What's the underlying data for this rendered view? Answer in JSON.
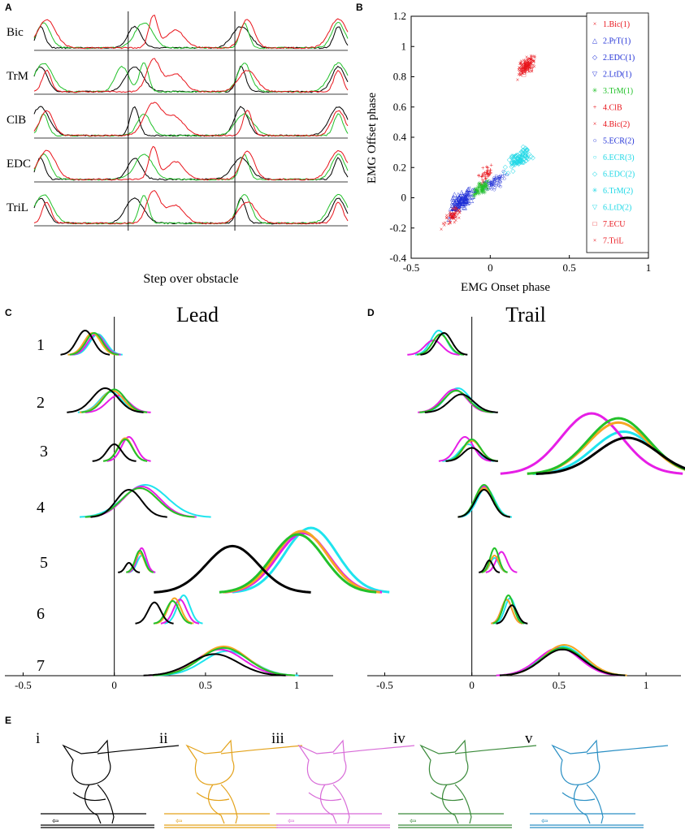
{
  "panel_labels": [
    "A",
    "B",
    "C",
    "D",
    "E"
  ],
  "chart_data": [
    {
      "id": "A",
      "type": "line",
      "title": "",
      "xlabel": "Step over obstacle",
      "rows": [
        "Bic",
        "TrM",
        "ClB",
        "EDC",
        "TriL"
      ],
      "series_colors": {
        "black": "#000000",
        "red": "#e8141b",
        "green": "#22c12a"
      },
      "vertical_markers": [
        0.3,
        0.64
      ],
      "grid": false
    },
    {
      "id": "B",
      "type": "scatter",
      "xlabel": "EMG Onset phase",
      "ylabel": "EMG Offset phase",
      "xlim": [
        -0.5,
        1
      ],
      "ylim": [
        -0.4,
        1.2
      ],
      "xticks": [
        "-0.5",
        "0",
        "0.5",
        "1"
      ],
      "yticks": [
        "-0.4",
        "-0.2",
        "0",
        "0.2",
        "0.4",
        "0.6",
        "0.8",
        "1",
        "1.2"
      ],
      "legend": [
        {
          "label": "1.Bic(1)",
          "color": "#e8141b",
          "marker": "×"
        },
        {
          "label": "2.PrT(1)",
          "color": "#1f2fd6",
          "marker": "△"
        },
        {
          "label": "2.EDC(1)",
          "color": "#1f2fd6",
          "marker": "◇"
        },
        {
          "label": "2.LtD(1)",
          "color": "#1f2fd6",
          "marker": "▽"
        },
        {
          "label": "3.TrM(1)",
          "color": "#22c12a",
          "marker": "✳"
        },
        {
          "label": "4.ClB",
          "color": "#e8141b",
          "marker": "+"
        },
        {
          "label": "4.Bic(2)",
          "color": "#e8141b",
          "marker": "×"
        },
        {
          "label": "5.ECR(2)",
          "color": "#1f2fd6",
          "marker": "○"
        },
        {
          "label": "6.ECR(3)",
          "color": "#1fd8e6",
          "marker": "○"
        },
        {
          "label": "6.EDC(2)",
          "color": "#1fd8e6",
          "marker": "◇"
        },
        {
          "label": "6.TrM(2)",
          "color": "#1fd8e6",
          "marker": "✳"
        },
        {
          "label": "6.LtD(2)",
          "color": "#1fd8e6",
          "marker": "▽"
        },
        {
          "label": "7.ECU",
          "color": "#e8141b",
          "marker": "□"
        },
        {
          "label": "7.TriL",
          "color": "#e8141b",
          "marker": "×"
        }
      ],
      "clusters": [
        {
          "color": "#e8141b",
          "marker": "×",
          "center": [
            0.23,
            0.88
          ],
          "spread": [
            0.05,
            0.05
          ],
          "n": 110
        },
        {
          "color": "#e8141b",
          "marker": "□",
          "center": [
            0.23,
            0.86
          ],
          "spread": [
            0.04,
            0.03
          ],
          "n": 30
        },
        {
          "color": "#1fd8e6",
          "marker": "◇",
          "center": [
            0.18,
            0.26
          ],
          "spread": [
            0.07,
            0.05
          ],
          "n": 90
        },
        {
          "color": "#e8141b",
          "marker": "+",
          "center": [
            -0.03,
            0.16
          ],
          "spread": [
            0.04,
            0.05
          ],
          "n": 40
        },
        {
          "color": "#1f2fd6",
          "marker": "○",
          "center": [
            0.02,
            0.1
          ],
          "spread": [
            0.07,
            0.04
          ],
          "n": 70
        },
        {
          "color": "#22c12a",
          "marker": "✳",
          "center": [
            -0.06,
            0.06
          ],
          "spread": [
            0.05,
            0.03
          ],
          "n": 40
        },
        {
          "color": "#1f2fd6",
          "marker": "△",
          "center": [
            -0.18,
            -0.02
          ],
          "spread": [
            0.07,
            0.06
          ],
          "n": 110
        },
        {
          "color": "#e8141b",
          "marker": "×",
          "center": [
            -0.24,
            -0.12
          ],
          "spread": [
            0.05,
            0.04
          ],
          "n": 60
        }
      ]
    },
    {
      "id": "C",
      "type": "line",
      "title": "Lead",
      "xlim": [
        -0.6,
        1.2
      ],
      "xticks": [
        "-0.5",
        "0",
        "0.5",
        "1"
      ],
      "row_labels": [
        "1",
        "2",
        "3",
        "4",
        "5",
        "6",
        "7"
      ],
      "colors": {
        "i": "#000000",
        "ii": "#f5a623",
        "iii": "#e61ee6",
        "iv": "#22c12a",
        "v": "#1fe4ee"
      },
      "rows": [
        {
          "mu": {
            "i": -0.16,
            "ii": -0.12,
            "iii": -0.1,
            "iv": -0.11,
            "v": -0.09
          },
          "sd": {
            "i": 0.045,
            "ii": 0.045,
            "iii": 0.045,
            "iv": 0.045,
            "v": 0.045
          },
          "amp": {
            "i": 1,
            "ii": 0.9,
            "iii": 0.85,
            "iv": 0.9,
            "v": 0.85
          }
        },
        {
          "mu": {
            "i": -0.05,
            "ii": -0.01,
            "iii": 0.02,
            "iv": 0.0,
            "v": -0.02
          },
          "sd": {
            "i": 0.07,
            "ii": 0.06,
            "iii": 0.06,
            "iv": 0.06,
            "v": 0.06
          },
          "amp": {
            "i": 1,
            "ii": 0.9,
            "iii": 0.7,
            "iv": 0.95,
            "v": 0.85
          }
        },
        {
          "mu": {
            "i": 0.0,
            "ii": 0.06,
            "iii": 0.08,
            "iv": 0.06,
            "v": 0.06
          },
          "sd": {
            "i": 0.04,
            "ii": 0.04,
            "iii": 0.04,
            "iv": 0.04,
            "v": 0.04
          },
          "amp": {
            "i": 0.7,
            "ii": 0.95,
            "iii": 1,
            "iv": 0.9,
            "v": 0.95
          }
        },
        {
          "mu": {
            "i": 0.08,
            "ii": 0.14,
            "iii": 0.15,
            "iv": 0.14,
            "v": 0.17
          },
          "sd": {
            "i": 0.07,
            "ii": 0.1,
            "iii": 0.1,
            "iv": 0.1,
            "v": 0.12
          },
          "amp": {
            "i": 0.85,
            "ii": 0.9,
            "iii": 0.95,
            "iv": 0.9,
            "v": 1
          }
        },
        {
          "mu": {
            "i": 0.08,
            "ii": 0.14,
            "iii": 0.15,
            "iv": 0.14,
            "v": 0.15
          },
          "sd": {
            "i": 0.02,
            "ii": 0.025,
            "iii": 0.025,
            "iv": 0.025,
            "v": 0.025
          },
          "amp": {
            "i": 0.4,
            "ii": 0.8,
            "iii": 1,
            "iv": 0.9,
            "v": 0.7
          }
        },
        {
          "mu": {
            "i": 0.22,
            "ii": 0.33,
            "iii": 0.36,
            "iv": 0.32,
            "v": 0.38
          },
          "sd": {
            "i": 0.035,
            "ii": 0.035,
            "iii": 0.035,
            "iv": 0.035,
            "v": 0.035
          },
          "amp": {
            "i": 0.75,
            "ii": 0.9,
            "iii": 0.85,
            "iv": 0.8,
            "v": 1
          }
        },
        {
          "mu": {
            "i": 0.55,
            "ii": 0.6,
            "iii": 0.58,
            "iv": 0.6,
            "v": 0.62
          },
          "sd": {
            "i": 0.13,
            "ii": 0.13,
            "iii": 0.13,
            "iv": 0.13,
            "v": 0.13
          },
          "amp": {
            "i": 0.7,
            "ii": 0.95,
            "iii": 0.85,
            "iv": 0.9,
            "v": 0.8
          }
        }
      ],
      "inset": {
        "mu": {
          "i": 0.2,
          "ii": 0.57,
          "iii": 0.58,
          "iv": 0.55,
          "v": 0.62
        },
        "sd": {
          "i": 0.14,
          "ii": 0.14,
          "iii": 0.14,
          "iv": 0.14,
          "v": 0.14
        },
        "amp": {
          "i": 0.72,
          "ii": 0.95,
          "iii": 0.92,
          "iv": 0.9,
          "v": 1
        }
      }
    },
    {
      "id": "D",
      "type": "line",
      "title": "Trail",
      "xlim": [
        -0.6,
        1.2
      ],
      "xticks": [
        "-0.5",
        "0",
        "0.5",
        "1"
      ],
      "colors": {
        "i": "#000000",
        "ii": "#f5a623",
        "iii": "#e61ee6",
        "iv": "#22c12a",
        "v": "#1fe4ee"
      },
      "rows": [
        {
          "mu": {
            "i": -0.16,
            "ii": -0.18,
            "iii": -0.22,
            "iv": -0.18,
            "v": -0.19
          },
          "sd": {
            "i": 0.045,
            "ii": 0.045,
            "iii": 0.05,
            "iv": 0.045,
            "v": 0.045
          },
          "amp": {
            "i": 0.9,
            "ii": 0.85,
            "iii": 0.6,
            "iv": 0.85,
            "v": 1
          }
        },
        {
          "mu": {
            "i": -0.06,
            "ii": -0.09,
            "iii": -0.1,
            "iv": -0.09,
            "v": -0.08
          },
          "sd": {
            "i": 0.07,
            "ii": 0.07,
            "iii": 0.07,
            "iv": 0.07,
            "v": 0.07
          },
          "amp": {
            "i": 0.75,
            "ii": 0.9,
            "iii": 0.95,
            "iv": 0.9,
            "v": 1
          }
        },
        {
          "mu": {
            "i": 0.0,
            "ii": 0.0,
            "iii": -0.04,
            "iv": 0.0,
            "v": -0.02
          },
          "sd": {
            "i": 0.05,
            "ii": 0.05,
            "iii": 0.05,
            "iv": 0.05,
            "v": 0.05
          },
          "amp": {
            "i": 0.55,
            "ii": 0.85,
            "iii": 1,
            "iv": 0.9,
            "v": 0.7
          }
        },
        {
          "mu": {
            "i": 0.07,
            "ii": 0.07,
            "iii": 0.07,
            "iv": 0.07,
            "v": 0.08
          },
          "sd": {
            "i": 0.05,
            "ii": 0.05,
            "iii": 0.05,
            "iv": 0.05,
            "v": 0.05
          },
          "amp": {
            "i": 0.85,
            "ii": 0.9,
            "iii": 0.95,
            "iv": 1,
            "v": 0.9
          }
        },
        {
          "mu": {
            "i": 0.1,
            "ii": 0.13,
            "iii": 0.17,
            "iv": 0.13,
            "v": 0.13
          },
          "sd": {
            "i": 0.02,
            "ii": 0.025,
            "iii": 0.03,
            "iv": 0.025,
            "v": 0.025
          },
          "amp": {
            "i": 0.5,
            "ii": 0.7,
            "iii": 0.85,
            "iv": 1,
            "v": 0.6
          }
        },
        {
          "mu": {
            "i": 0.23,
            "ii": 0.2,
            "iii": 0.2,
            "iv": 0.21,
            "v": 0.22
          },
          "sd": {
            "i": 0.03,
            "ii": 0.03,
            "iii": 0.03,
            "iv": 0.03,
            "v": 0.03
          },
          "amp": {
            "i": 0.65,
            "ii": 0.85,
            "iii": 0.85,
            "iv": 1,
            "v": 0.9
          }
        },
        {
          "mu": {
            "i": 0.52,
            "ii": 0.53,
            "iii": 0.5,
            "iv": 0.52,
            "v": 0.52
          },
          "sd": {
            "i": 0.12,
            "ii": 0.12,
            "iii": 0.12,
            "iv": 0.12,
            "v": 0.12
          },
          "amp": {
            "i": 0.85,
            "ii": 1,
            "iii": 0.9,
            "iv": 0.9,
            "v": 0.95
          }
        }
      ],
      "inset": {
        "mu": {
          "i": 0.6,
          "ii": 0.55,
          "iii": 0.4,
          "iv": 0.55,
          "v": 0.58
        },
        "sd": {
          "i": 0.17,
          "ii": 0.17,
          "iii": 0.17,
          "iv": 0.17,
          "v": 0.17
        },
        "amp": {
          "i": 0.6,
          "ii": 0.85,
          "iii": 1,
          "iv": 0.92,
          "v": 0.7
        }
      }
    }
  ],
  "panel_e": {
    "labels": [
      "i",
      "ii",
      "iii",
      "iv",
      "v"
    ],
    "colors": [
      "#000000",
      "#e3a21a",
      "#d86bd8",
      "#3a8a3a",
      "#2a8fc4"
    ]
  }
}
